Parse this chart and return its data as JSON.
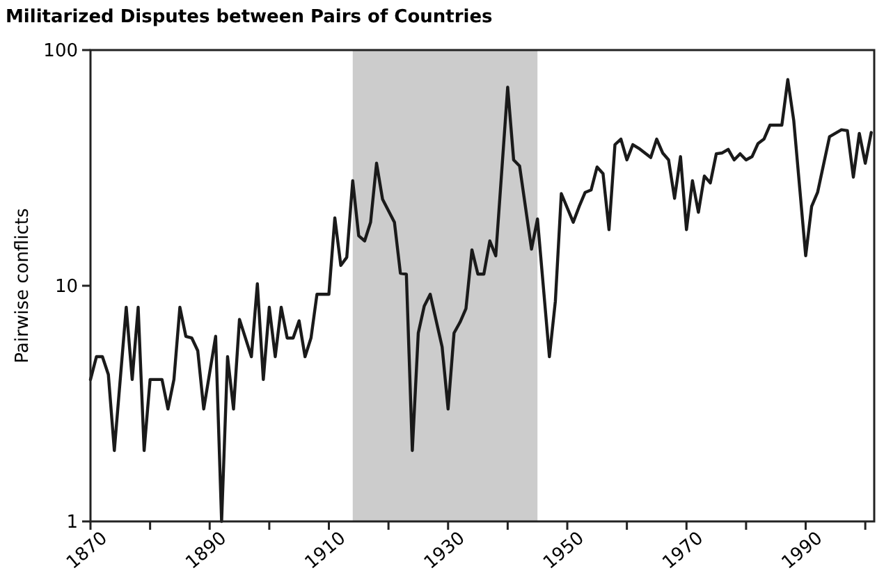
{
  "chart_data": {
    "type": "line",
    "title": "Militarized Disputes between Pairs of Countries",
    "ylabel": "Pairwise conflicts",
    "log": "y",
    "marker": "none",
    "line_style": "solid",
    "x": [
      1870,
      1871,
      1872,
      1873,
      1874,
      1876,
      1877,
      1878,
      1879,
      1880,
      1882,
      1883,
      1884,
      1885,
      1886,
      1887,
      1888,
      1889,
      1891,
      1892,
      1893,
      1894,
      1895,
      1897,
      1898,
      1899,
      1900,
      1901,
      1902,
      1903,
      1904,
      1905,
      1906,
      1907,
      1908,
      1910,
      1911,
      1912,
      1913,
      1914,
      1915,
      1916,
      1917,
      1918,
      1919,
      1921,
      1922,
      1923,
      1924,
      1925,
      1926,
      1927,
      1929,
      1930,
      1931,
      1932,
      1933,
      1934,
      1935,
      1936,
      1937,
      1938,
      1940,
      1941,
      1942,
      1944,
      1945,
      1947,
      1948,
      1949,
      1951,
      1952,
      1953,
      1954,
      1955,
      1956,
      1957,
      1958,
      1959,
      1960,
      1961,
      1962,
      1964,
      1965,
      1966,
      1967,
      1968,
      1969,
      1970,
      1971,
      1972,
      1973,
      1974,
      1975,
      1976,
      1977,
      1978,
      1979,
      1980,
      1981,
      1982,
      1983,
      1984,
      1986,
      1987,
      1988,
      1990,
      1991,
      1992,
      1994,
      1996,
      1997,
      1998,
      1999,
      2000,
      2001
    ],
    "series": [
      {
        "color": "#1a1a1a",
        "values": [
          4.0,
          5.0,
          5.0,
          4.2,
          2.0,
          8.1,
          4.0,
          8.1,
          2.0,
          4.0,
          4.0,
          3.0,
          4.0,
          8.1,
          6.1,
          6.0,
          5.3,
          3.0,
          6.1,
          1.0,
          5.0,
          3.0,
          7.2,
          5.0,
          10.2,
          4.0,
          8.1,
          5.0,
          8.1,
          6.0,
          6.0,
          7.1,
          5.0,
          6.0,
          9.2,
          9.2,
          19.4,
          12.2,
          13.2,
          27.9,
          16.3,
          15.5,
          18.6,
          33.1,
          23.3,
          18.6,
          11.3,
          11.2,
          2.0,
          6.3,
          8.2,
          9.2,
          5.5,
          3.0,
          6.3,
          7.0,
          8.0,
          14.2,
          11.2,
          11.2,
          15.5,
          13.4,
          69.6,
          34.2,
          32.2,
          14.3,
          19.2,
          5.0,
          8.6,
          24.6,
          18.6,
          21.7,
          24.9,
          25.5,
          31.9,
          29.9,
          17.3,
          39.7,
          41.9,
          34.2,
          39.7,
          38.3,
          35.0,
          41.9,
          36.6,
          34.2,
          23.5,
          35.3,
          17.3,
          27.9,
          20.5,
          29.2,
          27.3,
          36.3,
          36.6,
          37.9,
          34.2,
          36.3,
          34.2,
          35.3,
          40.1,
          41.9,
          48.0,
          48.0,
          74.9,
          50.2,
          13.4,
          21.7,
          24.9,
          42.9,
          45.9,
          45.5,
          28.9,
          44.3,
          33.1,
          44.7
        ]
      }
    ],
    "xlim": [
      1870,
      2001.5
    ],
    "xticks": [
      1870,
      {
        "value": 1880,
        "label": null
      },
      1890,
      {
        "value": 1900,
        "label": null
      },
      1910,
      {
        "value": 1920,
        "label": null
      },
      1930,
      {
        "value": 1940,
        "label": null
      },
      1950,
      {
        "value": 1960,
        "label": null
      },
      1970,
      {
        "value": 1980,
        "label": null
      },
      1990,
      {
        "value": 2000,
        "label": null
      }
    ],
    "ylim": [
      1,
      100
    ],
    "yticks": [
      1,
      10,
      100
    ],
    "bands": [
      {
        "axis": "x",
        "from": 1914,
        "to": 1945,
        "color": "#cccccc"
      }
    ]
  }
}
